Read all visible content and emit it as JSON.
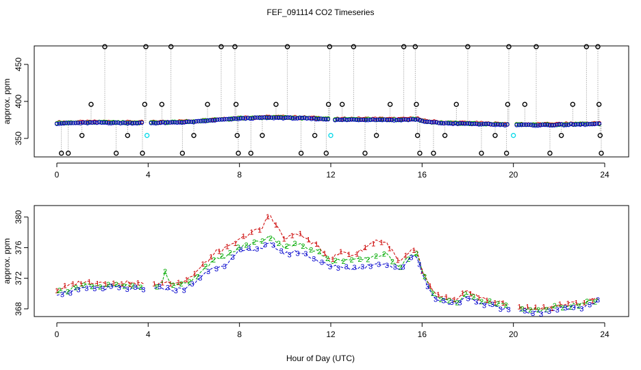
{
  "title": "FEF_091114  CO2 Timeseries",
  "xlabel": "Hour of Day (UTC)",
  "chart_data": [
    {
      "type": "scatter",
      "name": "top-panel",
      "ylabel": "approx. ppm",
      "xlim": [
        0,
        24
      ],
      "ylim": [
        325,
        475
      ],
      "xticks": [
        "0",
        "4",
        "8",
        "12",
        "16",
        "20",
        "24"
      ],
      "yticks": [
        "350",
        "400",
        "450"
      ],
      "series_colors": {
        "s1": "#cc0000",
        "s2": "#00aa00",
        "s3": "#0000cc",
        "cal": "#00d8e8",
        "ref": "#000000"
      },
      "baseline": [
        [
          0.0,
          370.5
        ],
        [
          1.0,
          371
        ],
        [
          2.0,
          371.5
        ],
        [
          3.0,
          371
        ],
        [
          3.8,
          371
        ],
        [
          4.1,
          371
        ],
        [
          5.0,
          371.5
        ],
        [
          6.0,
          372.5
        ],
        [
          7.0,
          375
        ],
        [
          7.8,
          376.5
        ],
        [
          8.0,
          377
        ],
        [
          9.0,
          378
        ],
        [
          10.0,
          378
        ],
        [
          11.0,
          377
        ],
        [
          11.9,
          376
        ],
        [
          12.1,
          375
        ],
        [
          13.0,
          375.5
        ],
        [
          14.0,
          375.5
        ],
        [
          15.0,
          375
        ],
        [
          15.8,
          376
        ],
        [
          16.0,
          373
        ],
        [
          17.0,
          370.5
        ],
        [
          18.0,
          370
        ],
        [
          19.0,
          369
        ],
        [
          19.8,
          368.5
        ],
        [
          20.1,
          368.5
        ],
        [
          21.0,
          368
        ],
        [
          22.0,
          368.5
        ],
        [
          23.0,
          369
        ],
        [
          23.7,
          369.5
        ]
      ],
      "cal_points": [
        [
          3.95,
          354
        ],
        [
          12.0,
          354
        ],
        [
          20.0,
          354
        ]
      ],
      "ref_points": [
        [
          0.2,
          330
        ],
        [
          0.5,
          330
        ],
        [
          1.1,
          354
        ],
        [
          1.5,
          396
        ],
        [
          2.1,
          474
        ],
        [
          2.6,
          330
        ],
        [
          3.1,
          354
        ],
        [
          3.75,
          330
        ],
        [
          3.85,
          396
        ],
        [
          3.9,
          474
        ],
        [
          4.6,
          396
        ],
        [
          5.0,
          474
        ],
        [
          5.5,
          330
        ],
        [
          6.0,
          354
        ],
        [
          6.6,
          396
        ],
        [
          7.2,
          474
        ],
        [
          7.8,
          474
        ],
        [
          7.85,
          396
        ],
        [
          7.9,
          354
        ],
        [
          7.95,
          330
        ],
        [
          8.5,
          330
        ],
        [
          9.0,
          354
        ],
        [
          9.6,
          396
        ],
        [
          10.1,
          474
        ],
        [
          10.7,
          330
        ],
        [
          11.3,
          354
        ],
        [
          11.8,
          330
        ],
        [
          11.9,
          396
        ],
        [
          11.95,
          474
        ],
        [
          12.5,
          396
        ],
        [
          13.0,
          474
        ],
        [
          13.5,
          330
        ],
        [
          14.0,
          354
        ],
        [
          14.6,
          396
        ],
        [
          15.2,
          474
        ],
        [
          15.7,
          474
        ],
        [
          15.75,
          396
        ],
        [
          15.8,
          354
        ],
        [
          15.9,
          330
        ],
        [
          16.5,
          330
        ],
        [
          17.0,
          354
        ],
        [
          17.5,
          396
        ],
        [
          18.0,
          474
        ],
        [
          18.6,
          330
        ],
        [
          19.2,
          354
        ],
        [
          19.7,
          330
        ],
        [
          19.75,
          396
        ],
        [
          19.8,
          474
        ],
        [
          20.5,
          396
        ],
        [
          21.0,
          474
        ],
        [
          21.6,
          330
        ],
        [
          22.1,
          354
        ],
        [
          22.6,
          396
        ],
        [
          23.2,
          474
        ],
        [
          23.7,
          474
        ],
        [
          23.75,
          396
        ],
        [
          23.8,
          354
        ],
        [
          23.85,
          330
        ]
      ]
    },
    {
      "type": "line",
      "name": "bottom-panel",
      "ylabel": "approx. ppm",
      "xlim": [
        0,
        24
      ],
      "ylim": [
        367,
        381.5
      ],
      "xticks": [
        "0",
        "4",
        "8",
        "12",
        "16",
        "20",
        "24"
      ],
      "yticks": [
        "368",
        "372",
        "376",
        "380"
      ],
      "series": [
        {
          "name": "1",
          "color": "#cc0000",
          "points": [
            [
              0.0,
              370.5
            ],
            [
              0.5,
              371.0
            ],
            [
              1.0,
              371.5
            ],
            [
              1.5,
              371.5
            ],
            [
              2.0,
              371.5
            ],
            [
              2.5,
              371.3
            ],
            [
              3.0,
              371.5
            ],
            [
              3.5,
              371.3
            ],
            [
              3.8,
              371.3
            ],
            [
              4.2,
              371.0
            ],
            [
              4.6,
              371.5
            ],
            [
              5.0,
              371.5
            ],
            [
              5.5,
              371.5
            ],
            [
              6.0,
              372.5
            ],
            [
              6.5,
              374.0
            ],
            [
              7.0,
              375.5
            ],
            [
              7.5,
              376.0
            ],
            [
              8.0,
              377.0
            ],
            [
              8.5,
              378.0
            ],
            [
              9.0,
              378.5
            ],
            [
              9.3,
              380.5
            ],
            [
              9.6,
              379.0
            ],
            [
              10.0,
              377.0
            ],
            [
              10.5,
              378.0
            ],
            [
              11.0,
              377.0
            ],
            [
              11.5,
              376.0
            ],
            [
              12.0,
              374.5
            ],
            [
              12.5,
              375.5
            ],
            [
              13.0,
              375.0
            ],
            [
              13.5,
              376.0
            ],
            [
              14.0,
              377.0
            ],
            [
              14.5,
              376.5
            ],
            [
              15.0,
              374.0
            ],
            [
              15.5,
              375.5
            ],
            [
              15.8,
              375.5
            ],
            [
              16.0,
              373.0
            ],
            [
              16.5,
              370.0
            ],
            [
              17.0,
              369.5
            ],
            [
              17.5,
              369.0
            ],
            [
              18.0,
              370.5
            ],
            [
              18.5,
              369.5
            ],
            [
              19.0,
              369.0
            ],
            [
              19.5,
              368.8
            ],
            [
              19.8,
              368.5
            ],
            [
              20.2,
              368.3
            ],
            [
              20.8,
              368.0
            ],
            [
              21.5,
              368.2
            ],
            [
              22.0,
              368.5
            ],
            [
              22.5,
              368.7
            ],
            [
              23.0,
              368.8
            ],
            [
              23.5,
              369.2
            ],
            [
              23.7,
              369.5
            ]
          ]
        },
        {
          "name": "2",
          "color": "#00aa00",
          "points": [
            [
              0.0,
              370.2
            ],
            [
              0.5,
              370.5
            ],
            [
              1.0,
              371.0
            ],
            [
              1.5,
              371.2
            ],
            [
              2.0,
              371.0
            ],
            [
              2.5,
              371.0
            ],
            [
              3.0,
              371.0
            ],
            [
              3.5,
              371.0
            ],
            [
              3.8,
              370.8
            ],
            [
              4.2,
              370.8
            ],
            [
              4.6,
              371.3
            ],
            [
              4.7,
              373.0
            ],
            [
              5.0,
              371.2
            ],
            [
              5.5,
              371.2
            ],
            [
              6.0,
              372.0
            ],
            [
              6.5,
              373.5
            ],
            [
              7.0,
              374.5
            ],
            [
              7.5,
              375.0
            ],
            [
              8.0,
              376.0
            ],
            [
              8.5,
              376.5
            ],
            [
              9.0,
              377.0
            ],
            [
              9.3,
              377.5
            ],
            [
              9.6,
              377.0
            ],
            [
              10.0,
              376.0
            ],
            [
              10.5,
              376.5
            ],
            [
              11.0,
              376.0
            ],
            [
              11.5,
              375.5
            ],
            [
              12.0,
              374.0
            ],
            [
              12.5,
              374.5
            ],
            [
              13.0,
              374.3
            ],
            [
              13.5,
              374.5
            ],
            [
              14.0,
              375.0
            ],
            [
              14.5,
              375.0
            ],
            [
              15.0,
              373.5
            ],
            [
              15.5,
              375.0
            ],
            [
              15.8,
              375.2
            ],
            [
              16.0,
              372.8
            ],
            [
              16.5,
              369.8
            ],
            [
              17.0,
              369.3
            ],
            [
              17.5,
              368.8
            ],
            [
              18.0,
              370.0
            ],
            [
              18.5,
              369.2
            ],
            [
              19.0,
              368.8
            ],
            [
              19.5,
              368.5
            ],
            [
              19.8,
              368.3
            ],
            [
              20.2,
              368.0
            ],
            [
              20.8,
              367.8
            ],
            [
              21.5,
              368.0
            ],
            [
              22.0,
              368.3
            ],
            [
              22.5,
              368.5
            ],
            [
              23.0,
              368.6
            ],
            [
              23.5,
              369.0
            ],
            [
              23.7,
              369.3
            ]
          ]
        },
        {
          "name": "3",
          "color": "#0000cc",
          "points": [
            [
              0.0,
              370.0
            ],
            [
              0.5,
              370.2
            ],
            [
              1.0,
              370.5
            ],
            [
              1.5,
              370.8
            ],
            [
              2.0,
              370.7
            ],
            [
              2.5,
              370.8
            ],
            [
              3.0,
              370.7
            ],
            [
              3.5,
              370.6
            ],
            [
              3.8,
              370.5
            ],
            [
              4.2,
              370.5
            ],
            [
              4.6,
              370.8
            ],
            [
              5.0,
              370.5
            ],
            [
              5.5,
              370.6
            ],
            [
              6.0,
              371.2
            ],
            [
              6.5,
              372.8
            ],
            [
              7.0,
              373.5
            ],
            [
              7.5,
              374.0
            ],
            [
              8.0,
              375.5
            ],
            [
              8.5,
              375.8
            ],
            [
              9.0,
              376.0
            ],
            [
              9.3,
              376.5
            ],
            [
              9.6,
              376.0
            ],
            [
              10.0,
              375.2
            ],
            [
              10.5,
              375.5
            ],
            [
              11.0,
              375.0
            ],
            [
              11.5,
              374.2
            ],
            [
              12.0,
              373.5
            ],
            [
              12.5,
              373.5
            ],
            [
              13.0,
              373.3
            ],
            [
              13.5,
              373.5
            ],
            [
              14.0,
              374.0
            ],
            [
              14.5,
              373.8
            ],
            [
              15.0,
              373.0
            ],
            [
              15.5,
              374.8
            ],
            [
              15.8,
              375.0
            ],
            [
              16.0,
              372.5
            ],
            [
              16.5,
              369.5
            ],
            [
              17.0,
              369.0
            ],
            [
              17.5,
              368.5
            ],
            [
              18.0,
              369.5
            ],
            [
              18.5,
              368.8
            ],
            [
              19.0,
              368.4
            ],
            [
              19.5,
              368.2
            ],
            [
              19.8,
              368.0
            ],
            [
              20.2,
              367.8
            ],
            [
              20.8,
              367.5
            ],
            [
              21.5,
              367.7
            ],
            [
              22.0,
              368.0
            ],
            [
              22.5,
              368.2
            ],
            [
              23.0,
              368.3
            ],
            [
              23.5,
              368.8
            ],
            [
              23.7,
              369.0
            ]
          ]
        }
      ]
    }
  ]
}
